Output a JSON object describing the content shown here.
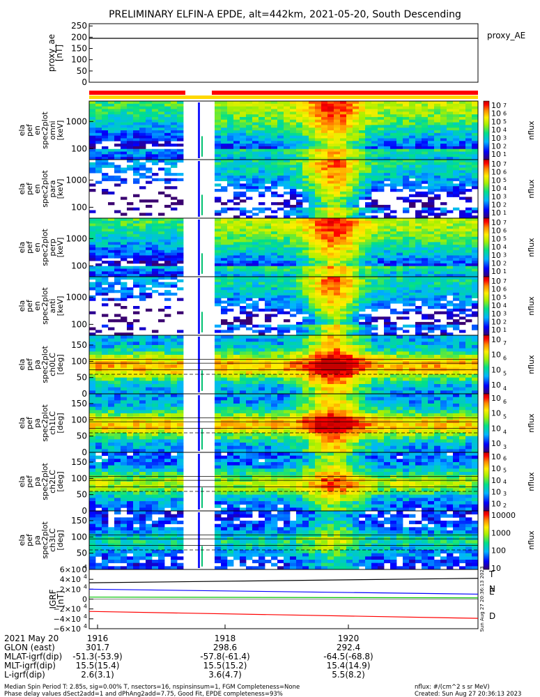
{
  "title": "PRELIMINARY ELFIN-A EPDE, alt=442km, 2021-05-20, South Descending",
  "proxy_ae": {
    "ylabel": [
      "proxy_ae",
      "[nT]"
    ],
    "ticks": [
      "250",
      "200",
      "150",
      "100",
      "50",
      "0"
    ],
    "legend": "proxy_AE",
    "ylim": [
      0,
      260
    ],
    "line_value": 195
  },
  "spectrogram_panels": [
    {
      "ylabel": [
        "ela",
        "pef",
        "en",
        "spec2plot",
        "omni",
        "[keV]"
      ],
      "yticks": [
        "1000",
        "100"
      ],
      "cb_ticks": [
        "10",
        "7",
        "10",
        "6",
        "10",
        "5",
        "10",
        "4",
        "10",
        "3",
        "10",
        "2",
        "10",
        "1"
      ],
      "cb_label": "nflux"
    },
    {
      "ylabel": [
        "ela",
        "pef",
        "en",
        "spec2plot",
        "para",
        "[keV]"
      ],
      "yticks": [
        "1000",
        "100"
      ],
      "cb_ticks": [
        "10",
        "7",
        "10",
        "6",
        "10",
        "5",
        "10",
        "4",
        "10",
        "3",
        "10",
        "2",
        "10",
        "1"
      ],
      "cb_label": "nflux"
    },
    {
      "ylabel": [
        "ela",
        "pef",
        "en",
        "spec2plot",
        "perp",
        "[keV]"
      ],
      "yticks": [
        "1000",
        "100"
      ],
      "cb_ticks": [
        "10",
        "7",
        "10",
        "6",
        "10",
        "5",
        "10",
        "4",
        "10",
        "3",
        "10",
        "2",
        "10",
        "1"
      ],
      "cb_label": "nflux"
    },
    {
      "ylabel": [
        "ela",
        "pef",
        "en",
        "spec2plot",
        "anti",
        "[keV]"
      ],
      "yticks": [
        "1000",
        "100"
      ],
      "cb_ticks": [
        "10",
        "7",
        "10",
        "6",
        "10",
        "5",
        "10",
        "4",
        "10",
        "3",
        "10",
        "2",
        "10",
        "1"
      ],
      "cb_label": "nflux"
    }
  ],
  "pitch_panels": [
    {
      "ylabel": [
        "ela",
        "pef",
        "pa",
        "spec2plot",
        "ch0LC",
        "[deg]"
      ],
      "yticks": [
        "150",
        "100",
        "50",
        "0"
      ],
      "cb_ticks": [
        "10",
        "7",
        "10",
        "6",
        "10",
        "5",
        "10",
        "4"
      ],
      "cb_label": "nflux"
    },
    {
      "ylabel": [
        "ela",
        "pef",
        "pa",
        "spec2plot",
        "ch1LC",
        "[deg]"
      ],
      "yticks": [
        "150",
        "100",
        "50",
        "0"
      ],
      "cb_ticks": [
        "10",
        "6",
        "10",
        "5",
        "10",
        "4",
        "10",
        "3"
      ],
      "cb_label": "nflux"
    },
    {
      "ylabel": [
        "ela",
        "pef",
        "pa",
        "spec2plot",
        "ch2LC",
        "[deg]"
      ],
      "yticks": [
        "150",
        "100",
        "50",
        "0"
      ],
      "cb_ticks": [
        "10",
        "6",
        "10",
        "5",
        "10",
        "4",
        "10",
        "3",
        "10",
        "2"
      ],
      "cb_label": "nflux"
    },
    {
      "ylabel": [
        "ela",
        "pef",
        "pa",
        "spec2plot",
        "ch3LC",
        "[deg]"
      ],
      "yticks": [
        "150",
        "100",
        "50",
        "0"
      ],
      "cb_ticks": [
        "10000",
        "1000",
        "100",
        "10"
      ],
      "cb_label": "nflux"
    }
  ],
  "igrf": {
    "ylabel": [
      "IGRF",
      "[nT]"
    ],
    "ticks": [
      "6×10",
      "4",
      "4×10",
      "4",
      "2×10",
      "4",
      "0",
      "−2×10",
      "4",
      "−4×10",
      "4",
      "−6×10",
      "4"
    ],
    "legend": [
      "T",
      "N",
      "E",
      "D"
    ],
    "legend_colors": [
      "#000000",
      "#0000ff",
      "#00c000",
      "#ff0000"
    ],
    "side_note": "Sun Aug 27 20:36:13 2023",
    "ylim": [
      -60000,
      60000
    ],
    "series": [
      {
        "name": "T",
        "color": "#000000",
        "start": 33000,
        "end": 42000
      },
      {
        "name": "N",
        "color": "#0000ff",
        "start": 20000,
        "end": 10000
      },
      {
        "name": "E",
        "color": "#00c000",
        "start": 4000,
        "end": 2500
      },
      {
        "name": "D",
        "color": "#ff0000",
        "start": -25000,
        "end": -39000
      }
    ]
  },
  "xaxis": {
    "row_labels": [
      "2021 May 20",
      "GLON (east)",
      "MLAT-igrf(dip)",
      "MLT-igrf(dip)",
      "L-igrf(dip)"
    ],
    "columns": [
      {
        "time": "1916",
        "glon": "301.7",
        "mlat": "-51.3(-53.9)",
        "mlt": "15.5(15.4)",
        "l": "2.6(3.1)"
      },
      {
        "time": "1918",
        "glon": "298.6",
        "mlat": "-57.8(-61.4)",
        "mlt": "15.5(15.2)",
        "l": "3.6(4.7)"
      },
      {
        "time": "1920",
        "glon": "292.4",
        "mlat": "-64.5(-68.8)",
        "mlt": "15.4(14.9)",
        "l": "5.5(8.2)"
      }
    ]
  },
  "footer": {
    "line1": "Median Spin Period T: 2.85s, sig=0.00% T, nsectors=16, nspinsinsum=1, FGM Completeness=None",
    "line2": "Phase delay values dSect2add=1 and dPhAng2add=7.75, Good Fit, EPDE completeness=93%",
    "right1": "nflux: #/(cm^2 s sr MeV)",
    "right2": "Created: Sun Aug 27 20:36:13 2023"
  },
  "chart_data": {
    "type": "heatmap",
    "title": "PRELIMINARY ELFIN-A EPDE, alt=442km, 2021-05-20, South Descending",
    "x_ticks": [
      "1916",
      "1918",
      "1920"
    ],
    "colorbar_label": "nflux",
    "colors": {
      "bar_red": "#ff0000",
      "bar_yellow": "#ffd800"
    }
  }
}
